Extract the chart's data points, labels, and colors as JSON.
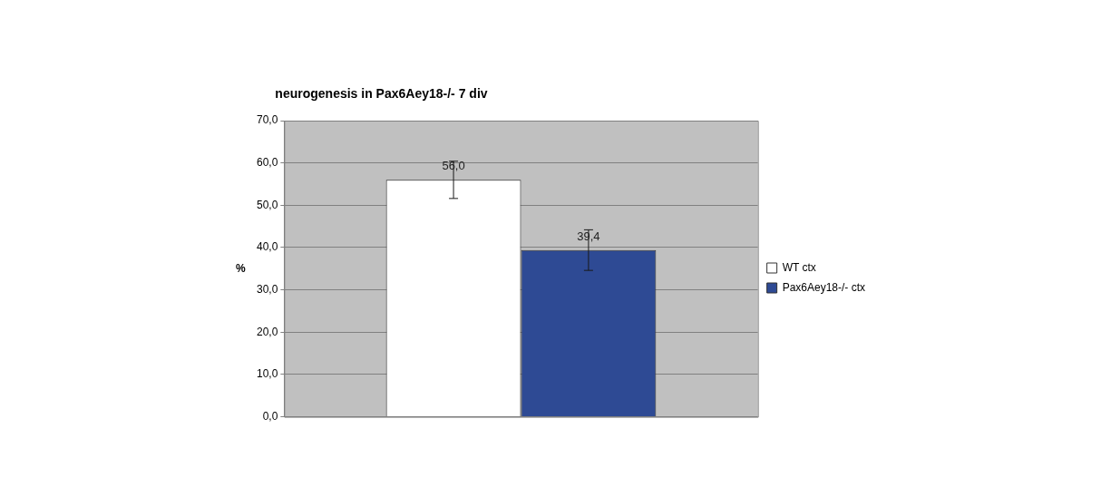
{
  "chart_data": {
    "type": "bar",
    "title": "neurogenesis in Pax6Aey18-/- 7 div",
    "ylabel": "%",
    "categories": [
      null
    ],
    "series": [
      {
        "name": "WT ctx",
        "color": "#ffffff",
        "values": [
          56.0
        ],
        "errors": [
          4.4
        ],
        "value_labels": [
          "56,0"
        ]
      },
      {
        "name": "Pax6Aey18-/- ctx",
        "color": "#2e4a94",
        "values": [
          39.4
        ],
        "errors": [
          4.8
        ],
        "value_labels": [
          "39,4"
        ]
      }
    ],
    "ylim": [
      0,
      70
    ],
    "yticks": [
      {
        "value": 0,
        "label": "0,0"
      },
      {
        "value": 10,
        "label": "10,0"
      },
      {
        "value": 20,
        "label": "20,0"
      },
      {
        "value": 30,
        "label": "30,0"
      },
      {
        "value": 40,
        "label": "40,0"
      },
      {
        "value": 50,
        "label": "50,0"
      },
      {
        "value": 60,
        "label": "60,0"
      },
      {
        "value": 70,
        "label": "70,0"
      }
    ],
    "grid": "y",
    "legend": "right"
  }
}
